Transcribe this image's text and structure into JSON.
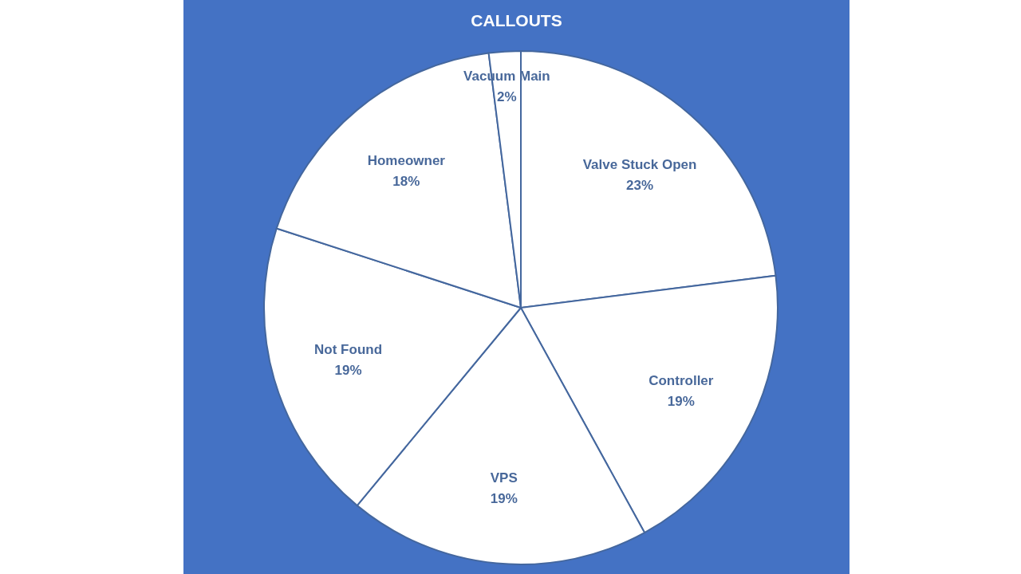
{
  "chart_data": {
    "type": "pie",
    "title": "CALLOUTS",
    "categories": [
      "Valve Stuck Open",
      "Controller",
      "VPS",
      "Not Found",
      "Homeowner",
      "Vacuum Main"
    ],
    "values": [
      23,
      19,
      19,
      19,
      18,
      2
    ],
    "colors": [
      "#ffffff",
      "#ffffff",
      "#ffffff",
      "#ffffff",
      "#ffffff",
      "#ffffff"
    ],
    "value_labels": [
      "23%",
      "19%",
      "19%",
      "19%",
      "18%",
      "2%"
    ]
  }
}
